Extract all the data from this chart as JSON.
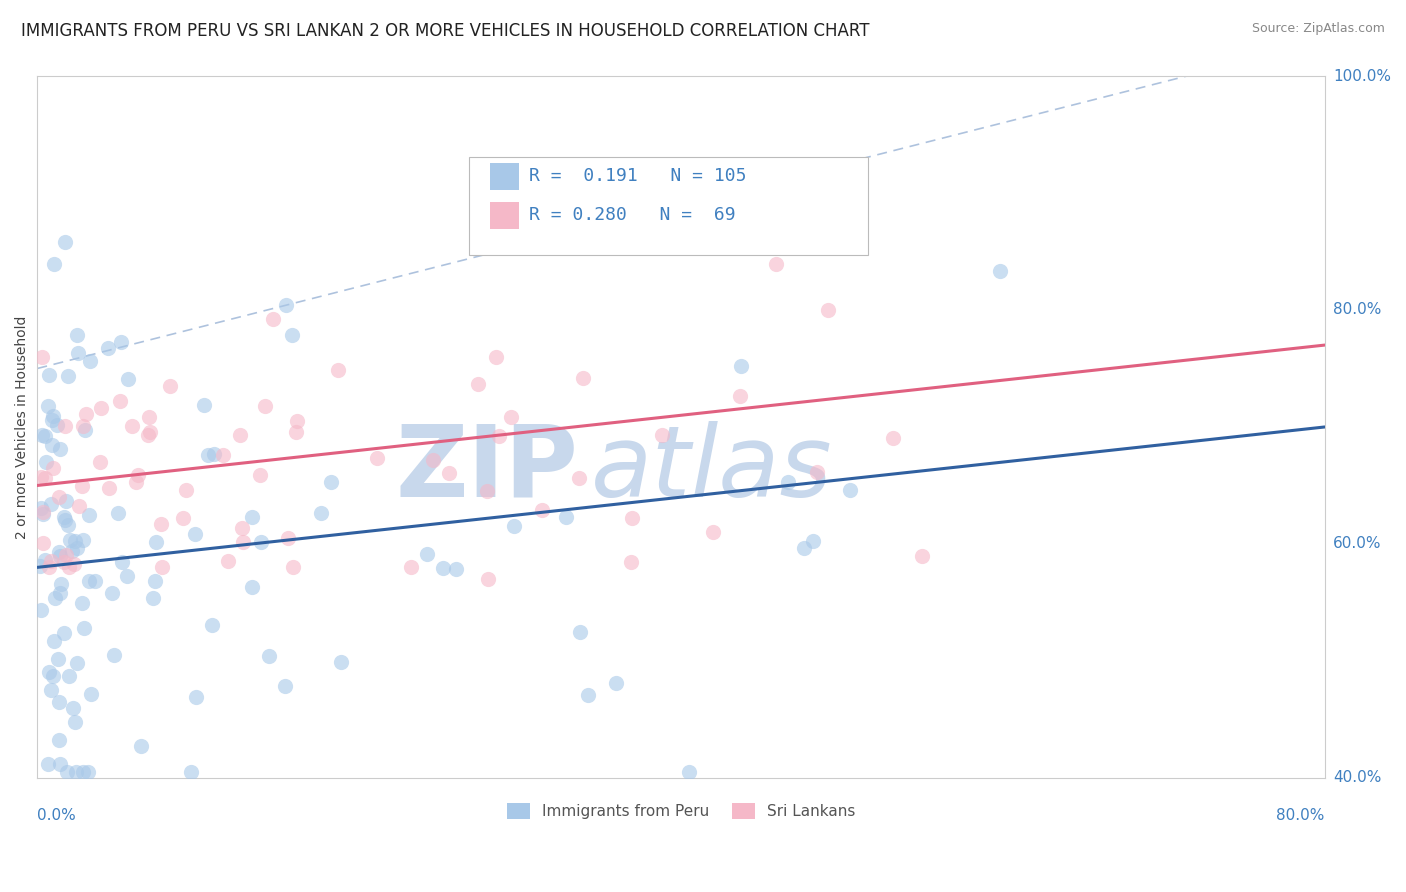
{
  "title": "IMMIGRANTS FROM PERU VS SRI LANKAN 2 OR MORE VEHICLES IN HOUSEHOLD CORRELATION CHART",
  "source": "Source: ZipAtlas.com",
  "xmin": 0.0,
  "xmax": 80.0,
  "ymin": 40.0,
  "ymax": 100.0,
  "legend_label1": "Immigrants from Peru",
  "legend_label2": "Sri Lankans",
  "R1": 0.191,
  "N1": 105,
  "R2": 0.28,
  "N2": 69,
  "blue_color": "#a8c8e8",
  "pink_color": "#f5b8c8",
  "blue_line_color": "#3060a0",
  "pink_line_color": "#e06080",
  "ref_line_color": "#a0b8d8",
  "watermark_zip_color": "#c8d8ec",
  "watermark_atlas_color": "#c8d8ec",
  "background_color": "#ffffff",
  "grid_color": "#dddddd",
  "title_fontsize": 12,
  "legend_text_color": "#4080c0",
  "right_label_color": "#4080c0"
}
